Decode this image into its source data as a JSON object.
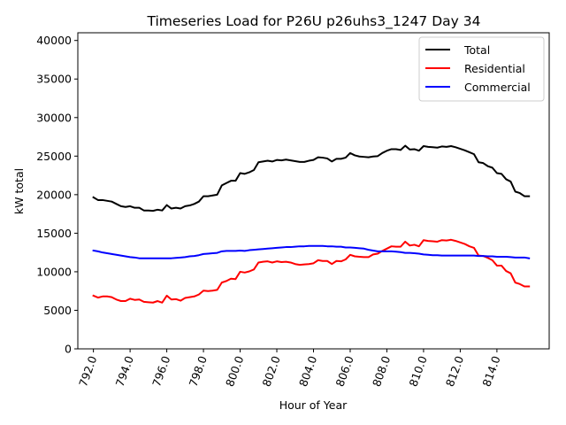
{
  "chart_data": {
    "type": "line",
    "title": "Timeseries Load for P26U p26uhs3_1247  Day 34",
    "xlabel": "Hour of Year",
    "ylabel": "kW total",
    "xlim": [
      791.15,
      816.85
    ],
    "ylim": [
      0,
      41000
    ],
    "xticks": [
      792,
      794,
      796,
      798,
      800,
      802,
      804,
      806,
      808,
      810,
      812,
      814
    ],
    "xtick_labels": [
      "792.0",
      "794.0",
      "796.0",
      "798.0",
      "800.0",
      "802.0",
      "804.0",
      "806.0",
      "808.0",
      "810.0",
      "812.0",
      "814.0"
    ],
    "yticks": [
      0,
      5000,
      10000,
      15000,
      20000,
      25000,
      30000,
      35000,
      40000
    ],
    "ytick_labels": [
      "0",
      "5000",
      "10000",
      "15000",
      "20000",
      "25000",
      "30000",
      "35000",
      "40000"
    ],
    "legend_position": "top-right",
    "x": [
      792.0,
      792.25,
      792.5,
      792.75,
      793.0,
      793.25,
      793.5,
      793.75,
      794.0,
      794.25,
      794.5,
      794.75,
      795.0,
      795.25,
      795.5,
      795.75,
      796.0,
      796.25,
      796.5,
      796.75,
      797.0,
      797.25,
      797.5,
      797.75,
      798.0,
      798.25,
      798.5,
      798.75,
      799.0,
      799.25,
      799.5,
      799.75,
      800.0,
      800.25,
      800.5,
      800.75,
      801.0,
      801.25,
      801.5,
      801.75,
      802.0,
      802.25,
      802.5,
      802.75,
      803.0,
      803.25,
      803.5,
      803.75,
      804.0,
      804.25,
      804.5,
      804.75,
      805.0,
      805.25,
      805.5,
      805.75,
      806.0,
      806.25,
      806.5,
      806.75,
      807.0,
      807.25,
      807.5,
      807.75,
      808.0,
      808.25,
      808.5,
      808.75,
      809.0,
      809.25,
      809.5,
      809.75,
      810.0,
      810.25,
      810.5,
      810.75,
      811.0,
      811.25,
      811.5,
      811.75,
      812.0,
      812.25,
      812.5,
      812.75,
      813.0,
      813.25,
      813.5,
      813.75,
      814.0,
      814.25,
      814.5,
      814.75,
      815.0,
      815.25,
      815.5,
      815.75
    ],
    "series": [
      {
        "name": "Total",
        "color": "#000000",
        "values": [
          19650,
          19300,
          19300,
          19200,
          19100,
          18800,
          18500,
          18400,
          18500,
          18300,
          18300,
          17950,
          17950,
          17900,
          18050,
          17950,
          18650,
          18200,
          18300,
          18200,
          18500,
          18600,
          18800,
          19100,
          19800,
          19800,
          19900,
          20000,
          21200,
          21500,
          21800,
          21800,
          22800,
          22700,
          22900,
          23200,
          24200,
          24300,
          24400,
          24300,
          24500,
          24450,
          24550,
          24450,
          24350,
          24250,
          24250,
          24400,
          24500,
          24850,
          24800,
          24700,
          24300,
          24650,
          24650,
          24800,
          25400,
          25100,
          24950,
          24900,
          24850,
          24950,
          25000,
          25400,
          25700,
          25900,
          25900,
          25800,
          26350,
          25850,
          25900,
          25700,
          26300,
          26200,
          26150,
          26100,
          26250,
          26200,
          26300,
          26150,
          25950,
          25750,
          25500,
          25250,
          24200,
          24100,
          23700,
          23500,
          22800,
          22700,
          22000,
          21700,
          20400,
          20200,
          19800,
          19800
        ]
      },
      {
        "name": "Residential",
        "color": "#ff0000",
        "values": [
          6900,
          6650,
          6800,
          6800,
          6700,
          6400,
          6200,
          6200,
          6500,
          6350,
          6400,
          6100,
          6050,
          6000,
          6200,
          6000,
          6900,
          6400,
          6450,
          6250,
          6600,
          6700,
          6800,
          7050,
          7550,
          7500,
          7550,
          7650,
          8600,
          8800,
          9100,
          9050,
          10000,
          9900,
          10050,
          10300,
          11200,
          11300,
          11350,
          11200,
          11350,
          11250,
          11300,
          11200,
          11000,
          10900,
          10950,
          11000,
          11100,
          11500,
          11400,
          11400,
          11000,
          11400,
          11350,
          11600,
          12200,
          12000,
          11950,
          11900,
          11900,
          12250,
          12350,
          12700,
          13000,
          13300,
          13250,
          13250,
          13900,
          13400,
          13500,
          13300,
          14100,
          14000,
          13950,
          13900,
          14100,
          14050,
          14150,
          14000,
          13800,
          13600,
          13300,
          13100,
          12100,
          12050,
          11800,
          11500,
          10800,
          10800,
          10100,
          9800,
          8600,
          8400,
          8100,
          8100
        ]
      },
      {
        "name": "Commercial",
        "color": "#0000ff",
        "values": [
          12750,
          12650,
          12500,
          12400,
          12300,
          12200,
          12100,
          12000,
          11900,
          11850,
          11750,
          11750,
          11750,
          11750,
          11750,
          11750,
          11750,
          11750,
          11800,
          11850,
          11900,
          12000,
          12050,
          12150,
          12300,
          12350,
          12400,
          12450,
          12650,
          12700,
          12700,
          12700,
          12750,
          12700,
          12800,
          12850,
          12900,
          12950,
          13000,
          13050,
          13100,
          13150,
          13200,
          13200,
          13250,
          13300,
          13300,
          13350,
          13350,
          13350,
          13350,
          13300,
          13300,
          13250,
          13250,
          13150,
          13150,
          13100,
          13050,
          13000,
          12850,
          12750,
          12650,
          12650,
          12650,
          12650,
          12600,
          12550,
          12450,
          12450,
          12400,
          12350,
          12250,
          12200,
          12150,
          12150,
          12100,
          12100,
          12100,
          12100,
          12100,
          12100,
          12100,
          12100,
          12050,
          12050,
          12000,
          12000,
          11950,
          11950,
          11950,
          11900,
          11850,
          11850,
          11850,
          11750
        ]
      }
    ]
  }
}
